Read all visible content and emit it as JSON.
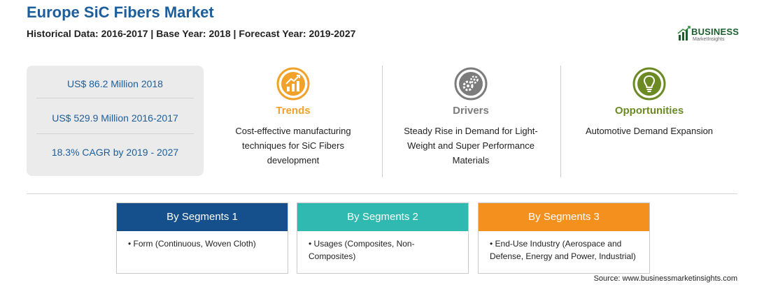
{
  "header": {
    "title": "Europe SiC Fibers Market",
    "subtitle": "Historical Data: 2016-2017 | Base Year: 2018 | Forecast Year: 2019-2027",
    "logo_word": "BUSINESS",
    "logo_sub": "MarketInsights"
  },
  "stats": [
    "US$ 86.2 Million 2018",
    "US$ 529.9 Million 2016-2017",
    "18.3% CAGR by 2019 - 2027"
  ],
  "columns": [
    {
      "title": "Trends",
      "icon": "trend-chart-icon",
      "color": "#f2a12a",
      "text": "Cost-effective manufacturing techniques for SiC Fibers development"
    },
    {
      "title": "Drivers",
      "icon": "gears-icon",
      "color": "#7c7c7c",
      "text": "Steady Rise in Demand for Light-Weight and Super Performance Materials"
    },
    {
      "title": "Opportunities",
      "icon": "lightbulb-icon",
      "color": "#6b8a23",
      "text": "Automotive Demand Expansion"
    }
  ],
  "segments": [
    {
      "title": "By Segments 1",
      "color": "#15508c",
      "item": "• Form (Continuous, Woven Cloth)"
    },
    {
      "title": "By Segments 2",
      "color": "#2fb9b1",
      "item": "• Usages (Composites, Non-Composites)"
    },
    {
      "title": "By Segments 3",
      "color": "#f4901e",
      "item": "• End-Use Industry (Aerospace and Defense, Energy and Power, Industrial)"
    }
  ],
  "source": "Source: www.businessmarketinsights.com"
}
